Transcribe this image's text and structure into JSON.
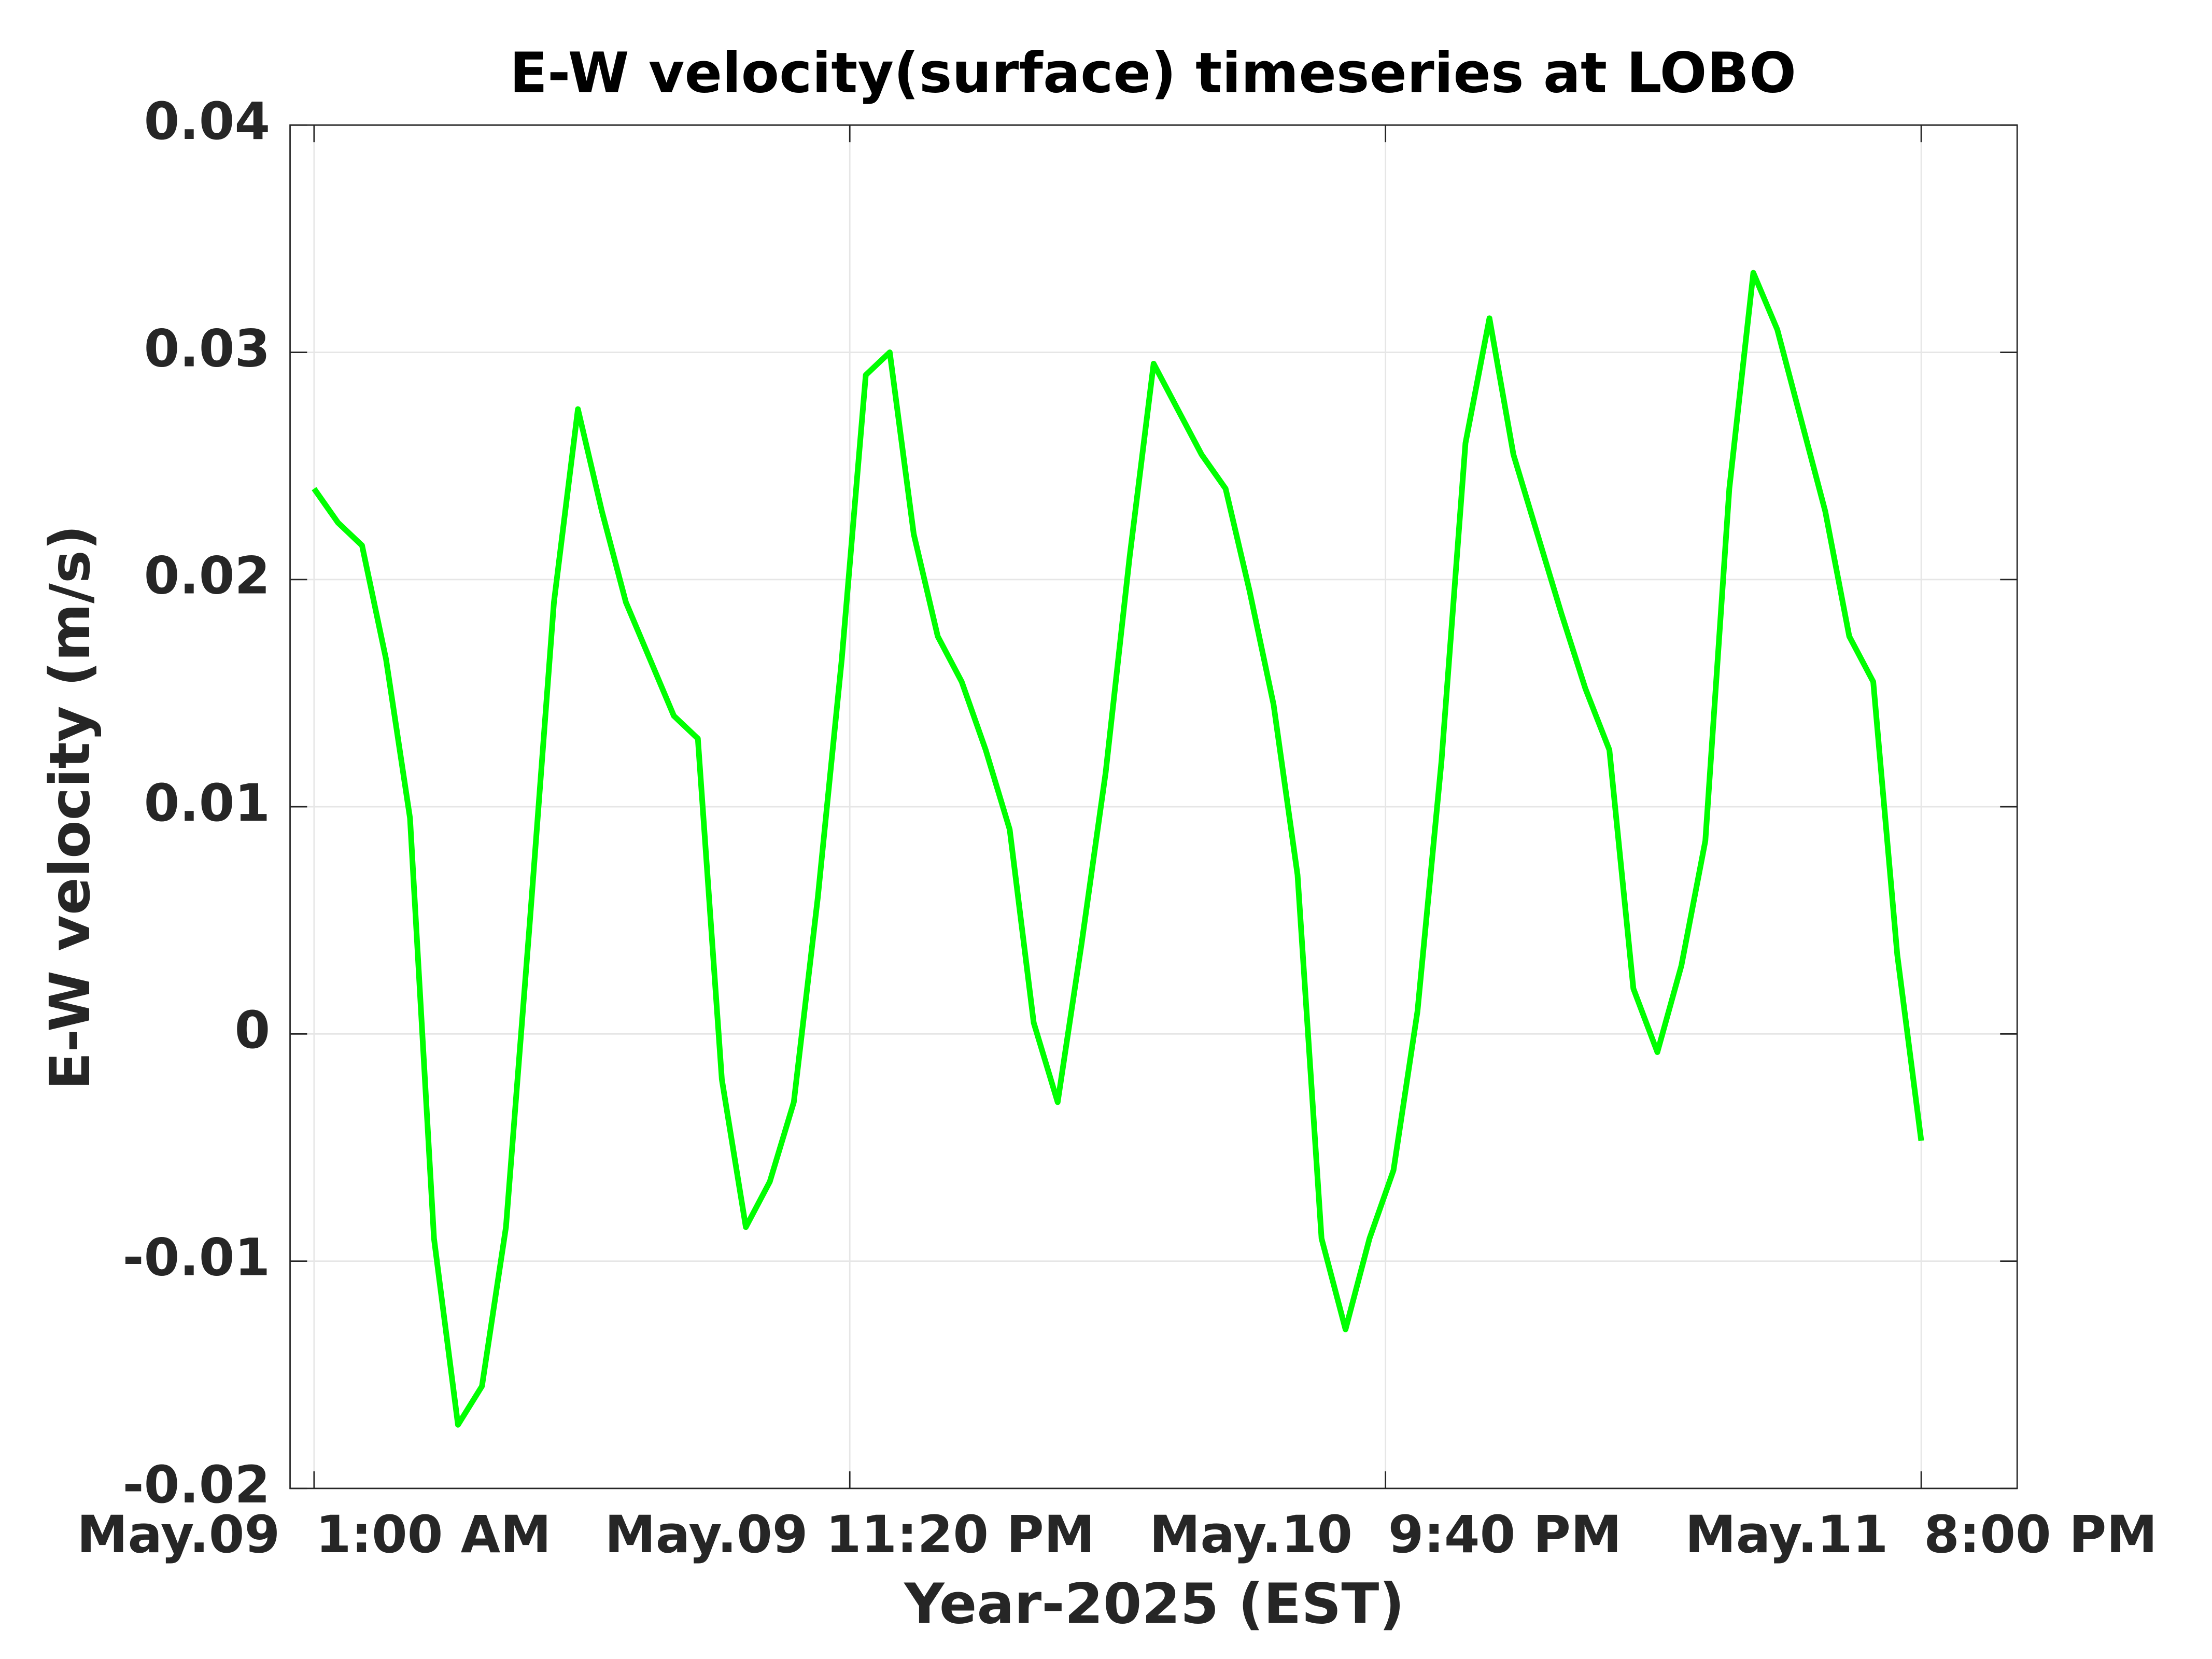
{
  "chart_data": {
    "type": "line",
    "title": "E-W velocity(surface) timeseries at LOBO",
    "x_label": "Year-2025 (EST)",
    "y_label": "E-W velocity (m/s)",
    "x": [
      "2025-05-09T01:00",
      "2025-05-09T02:00",
      "2025-05-09T03:00",
      "2025-05-09T04:00",
      "2025-05-09T05:00",
      "2025-05-09T06:00",
      "2025-05-09T07:00",
      "2025-05-09T08:00",
      "2025-05-09T09:00",
      "2025-05-09T10:00",
      "2025-05-09T11:00",
      "2025-05-09T12:00",
      "2025-05-09T13:00",
      "2025-05-09T14:00",
      "2025-05-09T15:00",
      "2025-05-09T16:00",
      "2025-05-09T17:00",
      "2025-05-09T18:00",
      "2025-05-09T19:00",
      "2025-05-09T20:00",
      "2025-05-09T21:00",
      "2025-05-09T22:00",
      "2025-05-09T23:00",
      "2025-05-10T00:00",
      "2025-05-10T01:00",
      "2025-05-10T02:00",
      "2025-05-10T03:00",
      "2025-05-10T04:00",
      "2025-05-10T05:00",
      "2025-05-10T06:00",
      "2025-05-10T07:00",
      "2025-05-10T08:00",
      "2025-05-10T09:00",
      "2025-05-10T10:00",
      "2025-05-10T11:00",
      "2025-05-10T12:00",
      "2025-05-10T13:00",
      "2025-05-10T14:00",
      "2025-05-10T15:00",
      "2025-05-10T16:00",
      "2025-05-10T17:00",
      "2025-05-10T18:00",
      "2025-05-10T19:00",
      "2025-05-10T20:00",
      "2025-05-10T21:00",
      "2025-05-10T22:00",
      "2025-05-10T23:00",
      "2025-05-11T00:00",
      "2025-05-11T01:00",
      "2025-05-11T02:00",
      "2025-05-11T03:00",
      "2025-05-11T04:00",
      "2025-05-11T05:00",
      "2025-05-11T06:00",
      "2025-05-11T07:00",
      "2025-05-11T08:00",
      "2025-05-11T09:00",
      "2025-05-11T10:00",
      "2025-05-11T11:00",
      "2025-05-11T12:00",
      "2025-05-11T13:00",
      "2025-05-11T14:00",
      "2025-05-11T15:00",
      "2025-05-11T16:00",
      "2025-05-11T17:00",
      "2025-05-11T18:00",
      "2025-05-11T19:00",
      "2025-05-11T20:00"
    ],
    "series": [
      {
        "name": "E-W velocity",
        "color": "#00ff00",
        "values": [
          0.024,
          0.0225,
          0.0215,
          0.0165,
          0.0095,
          -0.009,
          -0.0172,
          -0.0155,
          -0.0085,
          0.005,
          0.019,
          0.0275,
          0.023,
          0.019,
          0.0165,
          0.014,
          0.013,
          -0.002,
          -0.0085,
          -0.0065,
          -0.003,
          0.006,
          0.0165,
          0.029,
          0.03,
          0.022,
          0.0175,
          0.0155,
          0.0125,
          0.009,
          0.0005,
          -0.003,
          0.004,
          0.0115,
          0.021,
          0.0295,
          0.0275,
          0.0255,
          0.024,
          0.0195,
          0.0145,
          0.007,
          -0.009,
          -0.013,
          -0.009,
          -0.006,
          0.001,
          0.012,
          0.026,
          0.0315,
          0.0255,
          0.022,
          0.0185,
          0.0152,
          0.0125,
          0.002,
          -0.0008,
          0.003,
          0.0085,
          0.024,
          0.0335,
          0.031,
          0.027,
          0.023,
          0.0175,
          0.0155,
          0.0035,
          -0.0047
        ]
      }
    ],
    "xlim": [
      "2025-05-09T00:00",
      "2025-05-12T00:00"
    ],
    "xticks": [
      {
        "value": "2025-05-09T01:00",
        "label": "May.09  1:00 AM"
      },
      {
        "value": "2025-05-09T23:20",
        "label": "May.09 11:20 PM"
      },
      {
        "value": "2025-05-10T21:40",
        "label": "May.10  9:40 PM"
      },
      {
        "value": "2025-05-11T20:00",
        "label": "May.11  8:00 PM"
      }
    ],
    "ylim": [
      -0.02,
      0.04
    ],
    "yticks": [
      -0.02,
      -0.01,
      0,
      0.01,
      0.02,
      0.03,
      0.04
    ],
    "grid": true
  }
}
